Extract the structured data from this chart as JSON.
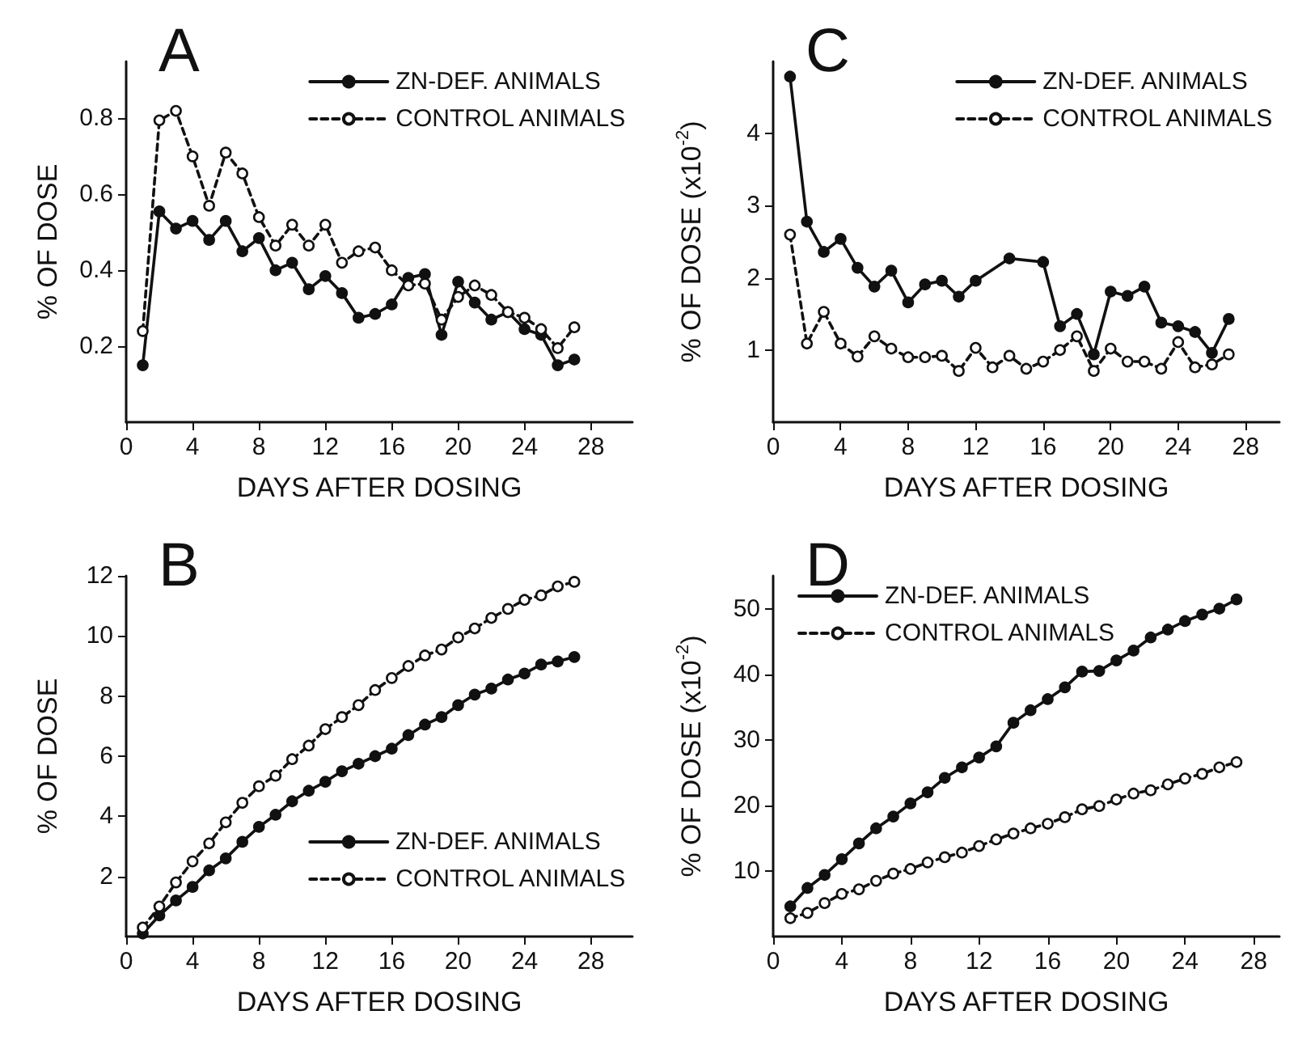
{
  "chart_data": [
    {
      "type": "line",
      "title": "A",
      "xlabel": "DAYS AFTER DOSING",
      "ylabel": "% OF DOSE",
      "x": [
        1,
        2,
        3,
        4,
        5,
        6,
        7,
        8,
        9,
        10,
        11,
        12,
        13,
        14,
        15,
        16,
        17,
        18,
        19,
        20,
        21,
        22,
        23,
        24,
        25,
        26,
        27
      ],
      "xlim": [
        0,
        30.5
      ],
      "xticks": [
        0,
        4,
        8,
        12,
        16,
        20,
        24,
        28
      ],
      "ylim": [
        0,
        0.95
      ],
      "yticks": [
        0.2,
        0.4,
        0.6,
        0.8
      ],
      "legend": "top right",
      "marker": "circle",
      "grid": false,
      "series": [
        {
          "name": "ZN-DEF. ANIMALS",
          "color": "#111111",
          "line_style": "solid",
          "values": [
            0.15,
            0.555,
            0.51,
            0.53,
            0.48,
            0.53,
            0.45,
            0.485,
            0.4,
            0.42,
            0.35,
            0.385,
            0.34,
            0.275,
            0.285,
            0.31,
            0.38,
            0.39,
            0.23,
            0.37,
            0.315,
            0.27,
            0.29,
            0.245,
            0.23,
            0.15,
            0.165
          ]
        },
        {
          "name": "CONTROL ANIMALS",
          "color": "#111111",
          "line_style": "dashed",
          "values": [
            0.24,
            0.795,
            0.82,
            0.7,
            0.57,
            0.71,
            0.655,
            0.54,
            0.465,
            0.52,
            0.465,
            0.52,
            0.42,
            0.45,
            0.46,
            0.4,
            0.36,
            0.365,
            0.27,
            0.33,
            0.36,
            0.335,
            0.29,
            0.275,
            0.245,
            0.195,
            0.25
          ]
        }
      ]
    },
    {
      "type": "line",
      "title": "C",
      "xlabel": "DAYS AFTER DOSING",
      "ylabel": "% OF DOSE (x10$^{-2}$)",
      "x": [
        1,
        2,
        3,
        4,
        5,
        6,
        7,
        8,
        9,
        10,
        11,
        12,
        13,
        14,
        15,
        16,
        17,
        18,
        19,
        20,
        21,
        22,
        23,
        24,
        25,
        26,
        27
      ],
      "xlim": [
        0,
        30
      ],
      "xticks": [
        0,
        4,
        8,
        12,
        16,
        20,
        24,
        28
      ],
      "ylim": [
        0,
        5
      ],
      "yticks": [
        1,
        2,
        3,
        4
      ],
      "legend": "top right",
      "marker": "circle",
      "grid": false,
      "series": [
        {
          "name": "ZN-DEF. ANIMALS",
          "color": "#111111",
          "line_style": "solid",
          "values": [
            4.79,
            2.78,
            2.36,
            2.54,
            2.14,
            1.88,
            2.1,
            1.66,
            1.91,
            1.96,
            1.74,
            1.96,
            null,
            2.27,
            null,
            2.22,
            1.33,
            1.5,
            0.94,
            1.81,
            1.75,
            1.88,
            1.38,
            1.33,
            1.25,
            0.96,
            1.43
          ]
        },
        {
          "name": "CONTROL ANIMALS",
          "color": "#111111",
          "line_style": "dashed",
          "values": [
            2.6,
            1.09,
            1.53,
            1.09,
            0.91,
            1.19,
            1.02,
            0.9,
            0.9,
            0.92,
            0.71,
            1.03,
            0.76,
            0.92,
            0.74,
            0.84,
            1.0,
            1.19,
            0.71,
            1.02,
            0.84,
            0.84,
            0.74,
            1.11,
            0.76,
            0.8,
            0.94
          ]
        }
      ]
    },
    {
      "type": "line",
      "title": "B",
      "xlabel": "DAYS AFTER DOSING",
      "ylabel": "% OF DOSE",
      "x": [
        1,
        2,
        3,
        4,
        5,
        6,
        7,
        8,
        9,
        10,
        11,
        12,
        13,
        14,
        15,
        16,
        17,
        18,
        19,
        20,
        21,
        22,
        23,
        24,
        25,
        26,
        27
      ],
      "xlim": [
        0,
        30.5
      ],
      "xticks": [
        0,
        4,
        8,
        12,
        16,
        20,
        24,
        28
      ],
      "ylim": [
        0,
        12
      ],
      "yticks": [
        2,
        4,
        6,
        8,
        10,
        12
      ],
      "legend": "bottom right",
      "marker": "circle",
      "grid": false,
      "series": [
        {
          "name": "ZN-DEF. ANIMALS",
          "color": "#111111",
          "line_style": "solid",
          "values": [
            0.1,
            0.7,
            1.2,
            1.65,
            2.2,
            2.6,
            3.15,
            3.65,
            4.05,
            4.5,
            4.85,
            5.15,
            5.5,
            5.75,
            6.0,
            6.25,
            6.7,
            7.05,
            7.3,
            7.7,
            8.05,
            8.25,
            8.55,
            8.75,
            9.05,
            9.15,
            9.3
          ]
        },
        {
          "name": "CONTROL ANIMALS",
          "color": "#111111",
          "line_style": "dashed",
          "values": [
            0.3,
            1.0,
            1.8,
            2.5,
            3.1,
            3.8,
            4.45,
            5.0,
            5.35,
            5.9,
            6.35,
            6.9,
            7.3,
            7.7,
            8.2,
            8.6,
            9.0,
            9.35,
            9.55,
            9.95,
            10.25,
            10.6,
            10.9,
            11.2,
            11.35,
            11.65,
            11.8
          ]
        }
      ]
    },
    {
      "type": "line",
      "title": "D",
      "xlabel": "DAYS AFTER DOSING",
      "ylabel": "% OF DOSE (x10$^{-2}$)",
      "x": [
        1,
        2,
        3,
        4,
        5,
        6,
        7,
        8,
        9,
        10,
        11,
        12,
        13,
        14,
        15,
        16,
        17,
        18,
        19,
        20,
        21,
        22,
        23,
        24,
        25,
        26,
        27
      ],
      "xlim": [
        0,
        29.5
      ],
      "xticks": [
        0,
        4,
        8,
        12,
        16,
        20,
        24,
        28
      ],
      "ylim": [
        0,
        55
      ],
      "yticks": [
        10,
        20,
        30,
        40,
        50
      ],
      "legend": "top left",
      "marker": "circle",
      "grid": false,
      "series": [
        {
          "name": "ZN-DEF. ANIMALS",
          "color": "#111111",
          "line_style": "solid",
          "values": [
            4.6,
            7.4,
            9.4,
            11.8,
            14.2,
            16.5,
            18.3,
            20.3,
            22.0,
            24.2,
            25.8,
            27.3,
            29.0,
            32.6,
            34.5,
            36.2,
            38.0,
            40.4,
            40.5,
            42.1,
            43.6,
            45.6,
            46.8,
            48.1,
            49.1,
            50.0,
            51.4
          ]
        },
        {
          "name": "CONTROL ANIMALS",
          "color": "#111111",
          "line_style": "dashed",
          "values": [
            2.8,
            3.6,
            5.1,
            6.5,
            7.2,
            8.5,
            9.6,
            10.3,
            11.3,
            12.1,
            12.8,
            13.8,
            14.8,
            15.7,
            16.5,
            17.2,
            18.2,
            19.4,
            19.9,
            20.9,
            21.8,
            22.3,
            23.2,
            24.1,
            24.8,
            25.8,
            26.6
          ]
        }
      ]
    }
  ]
}
